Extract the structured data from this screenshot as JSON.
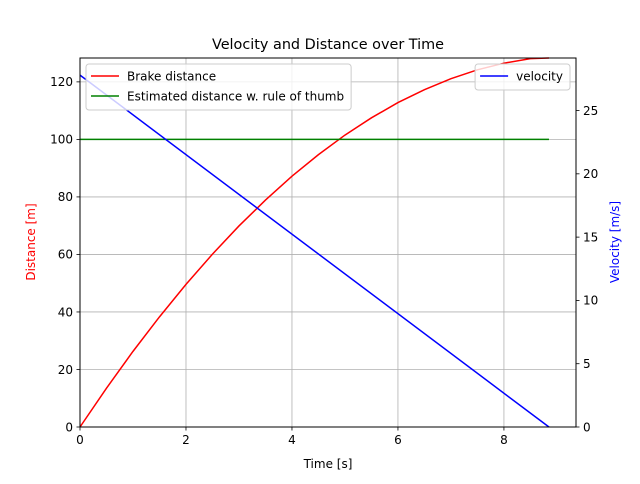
{
  "chart_data": {
    "type": "line",
    "title": "Velocity and Distance over Time",
    "xlabel": "Time [s]",
    "ylabel_left": "Distance [m]",
    "ylabel_right": "Velocity [m/s]",
    "xlim": [
      0,
      9.36
    ],
    "ylim_left": [
      0,
      128.3
    ],
    "ylim_right": [
      0,
      29.15
    ],
    "x_ticks": [
      0,
      2,
      4,
      6,
      8
    ],
    "y_ticks_left": [
      0,
      20,
      40,
      60,
      80,
      100,
      120
    ],
    "y_ticks_right": [
      0,
      5,
      10,
      15,
      20,
      25
    ],
    "grid": true,
    "colors": {
      "left_axis_label": "#ff0000",
      "right_axis_label": "#0000ff"
    },
    "series": [
      {
        "name": "Brake distance",
        "axis": "left",
        "color": "#ff0000",
        "x": [
          0,
          0.5,
          1,
          1.5,
          2,
          2.5,
          3,
          3.5,
          4,
          4.5,
          5,
          5.5,
          6,
          6.5,
          7,
          7.5,
          8,
          8.5,
          8.85
        ],
        "values": [
          0,
          13.5,
          26.3,
          38.3,
          49.6,
          60.1,
          69.9,
          78.9,
          87.2,
          94.7,
          101.5,
          107.5,
          112.8,
          117.3,
          121.1,
          124.2,
          126.5,
          128.1,
          128.3
        ]
      },
      {
        "name": "Estimated distance w. rule of thumb",
        "axis": "left",
        "color": "#008000",
        "x": [
          0,
          8.85
        ],
        "values": [
          100,
          100
        ]
      },
      {
        "name": "velocity",
        "axis": "right",
        "color": "#0000ff",
        "x": [
          0,
          8.85
        ],
        "values": [
          27.8,
          0
        ]
      }
    ],
    "legends": [
      {
        "placement": "top-left",
        "entries": [
          "Brake distance",
          "Estimated distance w. rule of thumb"
        ]
      },
      {
        "placement": "top-right",
        "entries": [
          "velocity"
        ]
      }
    ]
  }
}
